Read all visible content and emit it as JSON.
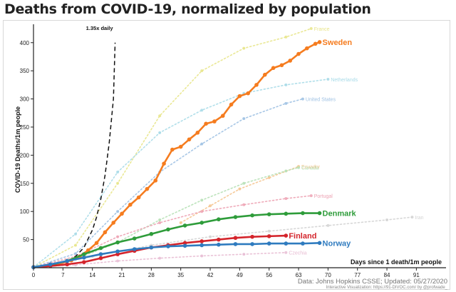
{
  "title": "Deaths from COVID-19, normalized by population",
  "source": "Data: Johns Hopkins CSSE; Updated: 05/27/2020",
  "credit": "Interactive Visualization: https://91-DIVOC.com/ by @profwade_",
  "chart_data": {
    "type": "line",
    "title": "Deaths from COVID-19, normalized by population",
    "xlabel": "Days since 1 death/1m people",
    "ylabel": "COVID-19 Deaths/1m people",
    "xlim": [
      0,
      95
    ],
    "ylim": [
      0,
      420
    ],
    "xticks": [
      0,
      7,
      14,
      21,
      28,
      35,
      42,
      49,
      56,
      63,
      70,
      77,
      84,
      91
    ],
    "yticks": [
      50,
      100,
      150,
      200,
      250,
      300,
      350,
      400
    ],
    "grid": false,
    "reference_line": {
      "label": "1.35x daily",
      "x": [
        0,
        2,
        4,
        6,
        8,
        10,
        12,
        14,
        15,
        16,
        17,
        18,
        19,
        19.4
      ],
      "y": [
        1,
        1.8,
        3.3,
        6.0,
        11,
        20,
        36,
        67,
        90,
        122,
        164,
        222,
        300,
        400
      ]
    },
    "highlighted_series": [
      {
        "name": "Sweden",
        "color": "#f57c1f",
        "x": [
          0,
          3,
          6,
          9,
          11,
          13,
          15,
          17,
          19,
          21,
          23,
          25,
          27,
          29,
          31,
          33,
          35,
          37,
          39,
          41,
          43,
          45,
          47,
          49,
          51,
          53,
          55,
          57,
          59,
          61,
          63,
          65,
          67,
          68
        ],
        "y": [
          1,
          3,
          7,
          13,
          20,
          31,
          44,
          63,
          80,
          96,
          112,
          125,
          140,
          155,
          185,
          210,
          215,
          228,
          240,
          256,
          260,
          270,
          290,
          305,
          310,
          325,
          343,
          355,
          360,
          368,
          380,
          390,
          398,
          401
        ]
      },
      {
        "name": "Denmark",
        "color": "#2e9c3a",
        "x": [
          0,
          4,
          8,
          12,
          16,
          20,
          24,
          28,
          32,
          36,
          40,
          44,
          48,
          52,
          56,
          60,
          64,
          68
        ],
        "y": [
          1,
          5,
          12,
          24,
          35,
          45,
          52,
          60,
          68,
          75,
          80,
          86,
          90,
          93,
          95,
          96,
          97,
          97
        ]
      },
      {
        "name": "Finland",
        "color": "#d4242b",
        "x": [
          0,
          4,
          8,
          12,
          16,
          20,
          24,
          28,
          32,
          36,
          40,
          44,
          48,
          52,
          56,
          60
        ],
        "y": [
          1,
          3,
          6,
          10,
          17,
          24,
          30,
          36,
          40,
          44,
          47,
          50,
          53,
          55,
          56,
          57
        ]
      },
      {
        "name": "Norway",
        "color": "#2f7bbf",
        "x": [
          0,
          4,
          8,
          12,
          16,
          20,
          24,
          28,
          32,
          36,
          40,
          44,
          48,
          52,
          56,
          60,
          64,
          68
        ],
        "y": [
          1,
          6,
          12,
          18,
          24,
          29,
          33,
          36,
          38,
          39,
          40,
          41,
          42,
          42,
          43,
          43,
          43,
          44
        ]
      }
    ],
    "background_series": [
      {
        "name": "France",
        "color": "#e8e58a",
        "x": [
          0,
          10,
          20,
          30,
          40,
          50,
          60,
          66
        ],
        "y": [
          1,
          40,
          150,
          270,
          350,
          390,
          410,
          425
        ]
      },
      {
        "name": "Netherlands",
        "color": "#a8dbe8",
        "x": [
          0,
          10,
          20,
          30,
          40,
          50,
          60,
          70
        ],
        "y": [
          1,
          60,
          170,
          240,
          280,
          310,
          325,
          335
        ]
      },
      {
        "name": "United States",
        "color": "#9ec1e3",
        "x": [
          0,
          10,
          20,
          30,
          40,
          50,
          60,
          64
        ],
        "y": [
          1,
          25,
          100,
          170,
          220,
          265,
          292,
          300
        ]
      },
      {
        "name": "Ecuador",
        "color": "#f5c48e",
        "x": [
          35,
          42,
          49,
          56,
          63
        ],
        "y": [
          80,
          110,
          140,
          160,
          180
        ]
      },
      {
        "name": "Canada",
        "color": "#b6e0b5",
        "x": [
          0,
          10,
          20,
          30,
          40,
          50,
          60,
          63
        ],
        "y": [
          1,
          15,
          45,
          85,
          120,
          150,
          172,
          178
        ]
      },
      {
        "name": "Portugal",
        "color": "#eda2b3",
        "x": [
          0,
          10,
          20,
          30,
          40,
          50,
          60,
          66
        ],
        "y": [
          1,
          20,
          55,
          80,
          100,
          112,
          123,
          128
        ]
      },
      {
        "name": "Iran",
        "color": "#d3d3d3",
        "x": [
          0,
          14,
          28,
          42,
          56,
          70,
          84,
          90
        ],
        "y": [
          1,
          20,
          40,
          55,
          65,
          75,
          85,
          90
        ]
      },
      {
        "name": "Czechia",
        "color": "#e8bcd3",
        "x": [
          0,
          10,
          20,
          30,
          40,
          50,
          60
        ],
        "y": [
          1,
          5,
          12,
          17,
          21,
          24,
          27
        ]
      }
    ]
  }
}
